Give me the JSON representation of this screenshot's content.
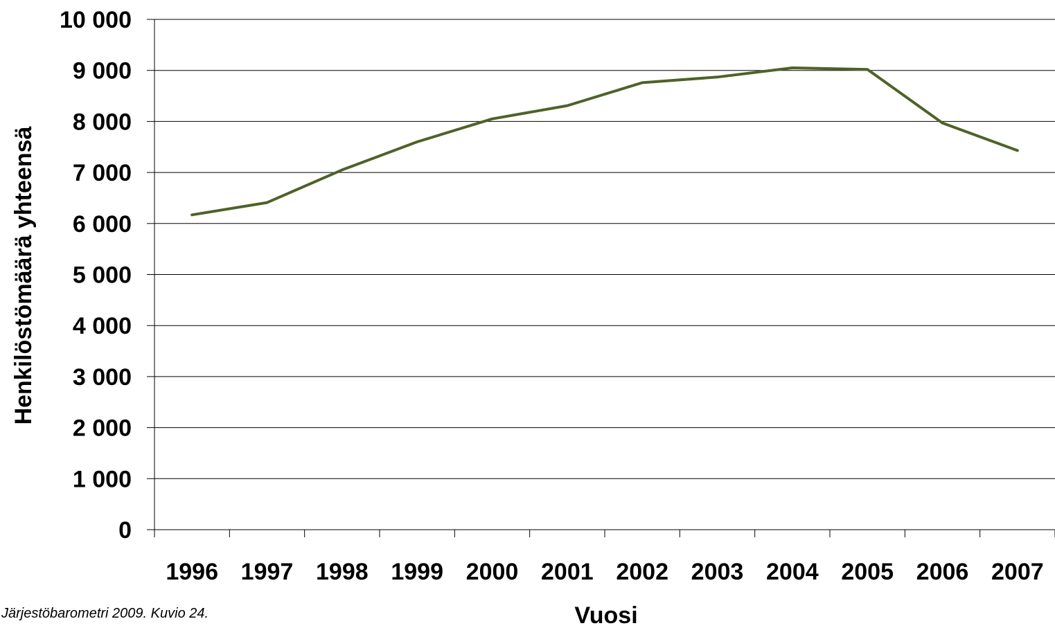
{
  "chart_data": {
    "type": "line",
    "title": "",
    "xlabel": "Vuosi",
    "ylabel": "Henkilöstömäärä yhteensä",
    "ylim": [
      0,
      10000
    ],
    "y_ticks": [
      "0",
      "1 000",
      "2 000",
      "3 000",
      "4 000",
      "5 000",
      "6 000",
      "7 000",
      "8 000",
      "9 000",
      "10 000"
    ],
    "categories": [
      "1996",
      "1997",
      "1998",
      "1999",
      "2000",
      "2001",
      "2002",
      "2003",
      "2004",
      "2005",
      "2006",
      "2007"
    ],
    "series": [
      {
        "values": [
          6170,
          6410,
          7050,
          7600,
          8050,
          8310,
          8760,
          8870,
          9050,
          9020,
          7970,
          7430
        ]
      }
    ],
    "grid": true,
    "legend": "none",
    "line_color": "#4f6228"
  },
  "source_note": "Järjestöbarometri 2009. Kuvio 24."
}
